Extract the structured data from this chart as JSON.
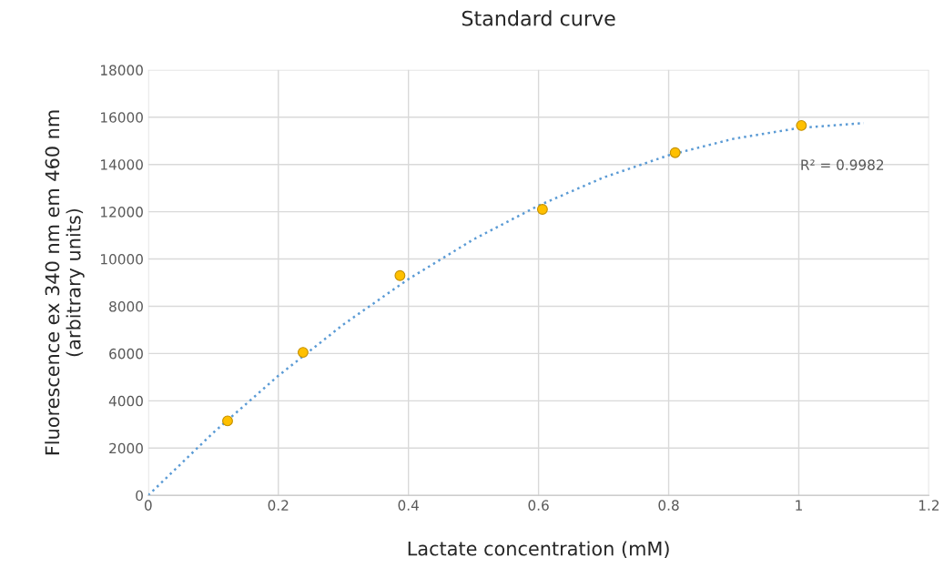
{
  "chart_data": {
    "type": "scatter",
    "title": "Standard curve",
    "xlabel": "Lactate concentration (mM)",
    "ylabel": "Fluorescence ex 340 nm em 460 nm\n(arbitrary units)",
    "series": [
      {
        "color": "#ffc000",
        "marker": "circle",
        "x": [
          0.122,
          0.238,
          0.387,
          0.606,
          0.81,
          1.004
        ],
        "values": [
          3150,
          6050,
          9300,
          12100,
          14500,
          15650
        ]
      },
      {
        "type": "line",
        "color": "#5b9bd5",
        "line_style": "dotted",
        "marker": "none",
        "x": [
          0,
          0.1,
          0.2,
          0.3,
          0.4,
          0.5,
          0.6,
          0.7,
          0.8,
          0.9,
          1.0,
          1.1
        ],
        "values": [
          0,
          2650,
          5060,
          7230,
          9150,
          10830,
          12260,
          13450,
          14390,
          15090,
          15540,
          15750
        ]
      }
    ],
    "annotations": [
      "R² = 0.9982"
    ],
    "xlim": [
      0,
      1.2
    ],
    "xticks": [
      0,
      0.2,
      0.4,
      0.6,
      0.8,
      1,
      1.2
    ],
    "ylim": [
      0,
      18000
    ],
    "yticks": [
      0,
      2000,
      4000,
      6000,
      8000,
      10000,
      12000,
      14000,
      16000,
      18000
    ],
    "grid": true
  }
}
